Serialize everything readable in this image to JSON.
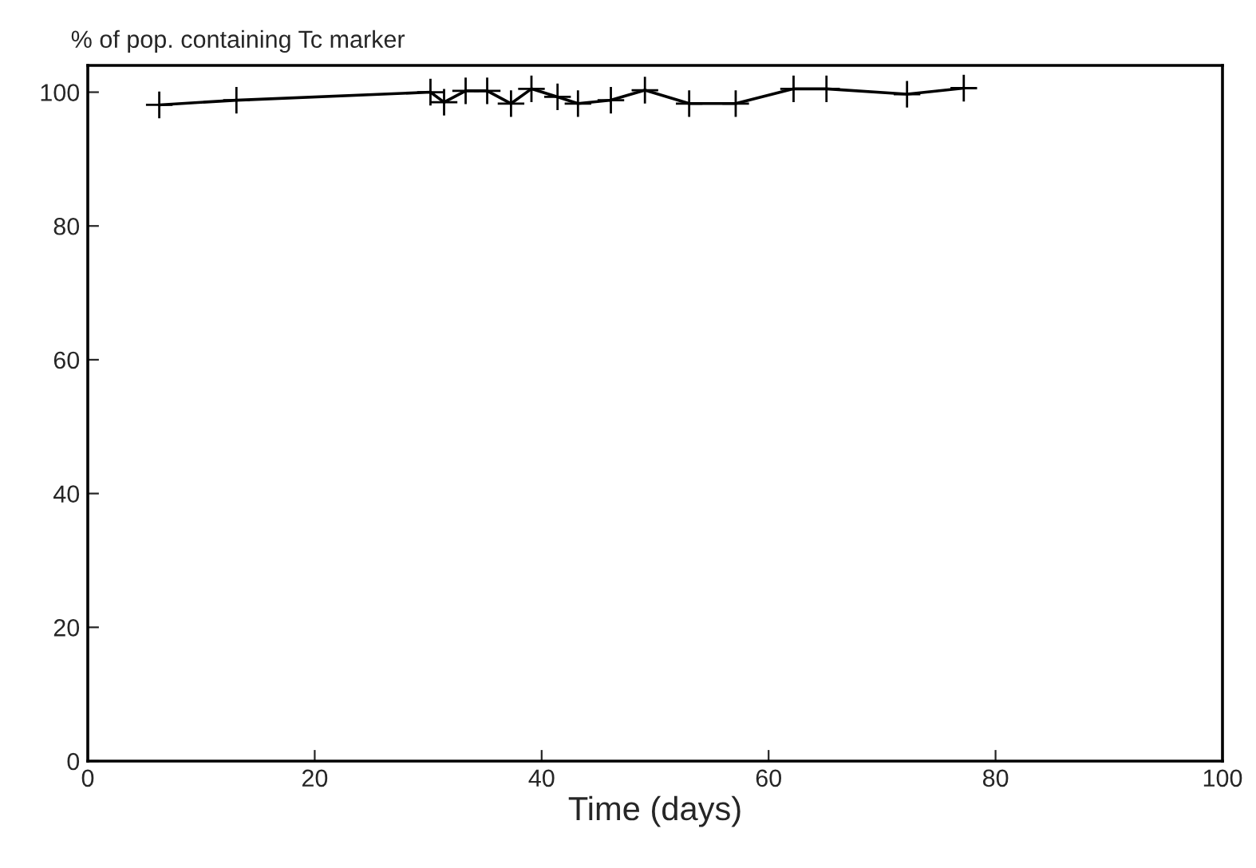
{
  "chart_data": {
    "type": "line",
    "title": "% of pop. containing Tc marker",
    "xlabel": "Time (days)",
    "x": [
      6.3,
      13.1,
      30.2,
      31.4,
      33.3,
      35.2,
      37.3,
      39.1,
      41.4,
      43.2,
      46.1,
      49.1,
      53.0,
      57.1,
      62.2,
      65.1,
      72.2,
      77.2
    ],
    "series": [
      {
        "color": "#000000",
        "values": [
          98.1,
          98.8,
          100.0,
          98.5,
          100.2,
          100.2,
          98.3,
          100.5,
          99.3,
          98.3,
          98.8,
          100.3,
          98.3,
          98.3,
          100.5,
          100.5,
          99.7,
          100.6
        ]
      }
    ],
    "xlim": [
      0,
      100
    ],
    "xticks": [
      0,
      20,
      40,
      60,
      80,
      100
    ],
    "ylim": [
      0,
      104
    ],
    "yticks": [
      0,
      20,
      40,
      60,
      80,
      100
    ],
    "marker": "cross",
    "line_style": "solid",
    "grid": false,
    "legend": false
  }
}
